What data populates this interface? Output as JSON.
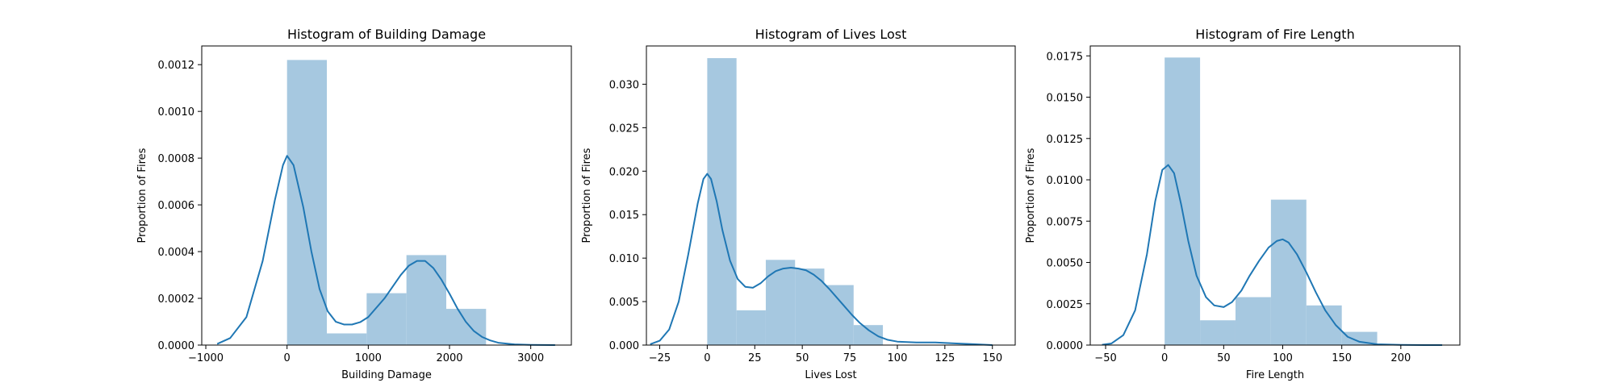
{
  "colors": {
    "bar": "#a6c8e0",
    "kde": "#1f77b4",
    "frame": "#000000",
    "background": "#ffffff"
  },
  "chart_data": [
    {
      "type": "bar",
      "title": "Histogram of Building Damage",
      "xlabel": "Building Damage",
      "ylabel": "Proportion of Fires",
      "xlim": [
        -1050,
        3500
      ],
      "ylim": [
        0,
        0.00128
      ],
      "xticks": [
        -1000,
        0,
        1000,
        2000,
        3000
      ],
      "xtick_labels": [
        "−1000",
        "0",
        "1000",
        "2000",
        "3000"
      ],
      "yticks": [
        0,
        0.0002,
        0.0004,
        0.0006,
        0.0008,
        0.001,
        0.0012
      ],
      "ytick_labels": [
        "0.0000",
        "0.0002",
        "0.0004",
        "0.0006",
        "0.0008",
        "0.0010",
        "0.0012"
      ],
      "bin_edges": [
        0,
        490,
        980,
        1470,
        1960,
        2450
      ],
      "values": [
        0.00122,
        5e-05,
        0.000222,
        0.000385,
        0.000155
      ],
      "kde": {
        "x": [
          -860,
          -700,
          -500,
          -300,
          -150,
          -50,
          0,
          80,
          200,
          300,
          400,
          500,
          600,
          700,
          800,
          900,
          1000,
          1100,
          1200,
          1300,
          1400,
          1500,
          1600,
          1700,
          1800,
          1900,
          2000,
          2100,
          2200,
          2300,
          2400,
          2500,
          2600,
          2800,
          3000,
          3300
        ],
        "y": [
          5e-06,
          3e-05,
          0.00012,
          0.00036,
          0.00062,
          0.00077,
          0.00081,
          0.00077,
          0.00059,
          0.0004,
          0.00024,
          0.000145,
          0.0001,
          8.8e-05,
          8.8e-05,
          9.8e-05,
          0.00012,
          0.00016,
          0.0002,
          0.00025,
          0.0003,
          0.00034,
          0.00036,
          0.00036,
          0.00033,
          0.00028,
          0.00022,
          0.000155,
          0.0001,
          6e-05,
          3.5e-05,
          2e-05,
          1e-05,
          3e-06,
          1e-06,
          0.0
        ]
      }
    },
    {
      "type": "bar",
      "title": "Histogram of Lives Lost",
      "xlabel": "Lives Lost",
      "ylabel": "Proportion of Fires",
      "xlim": [
        -32,
        162
      ],
      "ylim": [
        0,
        0.0344
      ],
      "xticks": [
        -25,
        0,
        25,
        50,
        75,
        100,
        125,
        150
      ],
      "xtick_labels": [
        "−25",
        "0",
        "25",
        "50",
        "75",
        "100",
        "125",
        "150"
      ],
      "yticks": [
        0,
        0.005,
        0.01,
        0.015,
        0.02,
        0.025,
        0.03
      ],
      "ytick_labels": [
        "0.000",
        "0.005",
        "0.010",
        "0.015",
        "0.020",
        "0.025",
        "0.030"
      ],
      "bin_edges": [
        0,
        15.4,
        30.8,
        46.2,
        61.6,
        77,
        92.4
      ],
      "values": [
        0.033,
        0.004,
        0.0098,
        0.0088,
        0.0069,
        0.0023
      ],
      "kde": {
        "x": [
          -30,
          -25,
          -20,
          -15,
          -10,
          -5,
          -2,
          0,
          2,
          5,
          8,
          12,
          16,
          20,
          24,
          28,
          32,
          36,
          40,
          44,
          48,
          52,
          56,
          60,
          64,
          68,
          72,
          76,
          80,
          85,
          90,
          95,
          100,
          110,
          120,
          130,
          140,
          150
        ],
        "y": [
          0.0001,
          0.0005,
          0.0018,
          0.005,
          0.0104,
          0.0163,
          0.0191,
          0.0197,
          0.0191,
          0.0165,
          0.0132,
          0.0097,
          0.0076,
          0.0067,
          0.0066,
          0.0071,
          0.0079,
          0.0085,
          0.0088,
          0.0089,
          0.0088,
          0.0086,
          0.0081,
          0.0074,
          0.0065,
          0.0055,
          0.0045,
          0.0035,
          0.0026,
          0.0017,
          0.001,
          0.0006,
          0.0004,
          0.0003,
          0.0003,
          0.0002,
          0.0001,
          0.0
        ]
      }
    },
    {
      "type": "bar",
      "title": "Histogram of Fire Length",
      "xlabel": "Fire Length",
      "ylabel": "Proportion of Fires",
      "xlim": [
        -63,
        250
      ],
      "ylim": [
        0,
        0.0181
      ],
      "xticks": [
        -50,
        0,
        50,
        100,
        150,
        200
      ],
      "xtick_labels": [
        "−50",
        "0",
        "50",
        "100",
        "150",
        "200"
      ],
      "yticks": [
        0,
        0.0025,
        0.005,
        0.0075,
        0.01,
        0.0125,
        0.015,
        0.0175
      ],
      "ytick_labels": [
        "0.0000",
        "0.0025",
        "0.0050",
        "0.0075",
        "0.0100",
        "0.0125",
        "0.0150",
        "0.0175"
      ],
      "bin_edges": [
        0,
        30,
        60,
        90,
        120,
        150,
        180
      ],
      "values": [
        0.0174,
        0.0015,
        0.0029,
        0.0088,
        0.0024,
        0.0008
      ],
      "kde": {
        "x": [
          -53,
          -45,
          -35,
          -25,
          -15,
          -8,
          -2,
          3,
          8,
          14,
          20,
          27,
          35,
          42,
          50,
          57,
          65,
          72,
          80,
          88,
          95,
          100,
          105,
          112,
          120,
          128,
          136,
          145,
          155,
          165,
          180,
          200,
          220,
          235
        ],
        "y": [
          2e-05,
          0.0001,
          0.0006,
          0.0021,
          0.0055,
          0.0087,
          0.0106,
          0.0109,
          0.0104,
          0.0085,
          0.0063,
          0.0042,
          0.0029,
          0.0024,
          0.0023,
          0.0026,
          0.0033,
          0.0042,
          0.0051,
          0.0059,
          0.0063,
          0.0064,
          0.0062,
          0.0055,
          0.0044,
          0.0032,
          0.0021,
          0.0012,
          0.0005,
          0.0002,
          5e-05,
          1e-05,
          0.0,
          0.0
        ]
      }
    }
  ]
}
